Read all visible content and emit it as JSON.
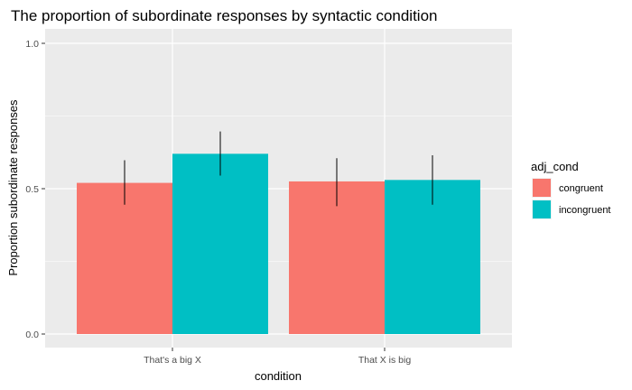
{
  "chart_data": {
    "type": "bar",
    "title": "The proportion of subordinate responses by syntactic condition",
    "xlabel": "condition",
    "ylabel": "Proportion subordinate responses",
    "categories": [
      "That's a big X",
      "That X is big"
    ],
    "series": [
      {
        "name": "congruent",
        "values": [
          0.52,
          0.525
        ],
        "err_low": [
          0.445,
          0.44
        ],
        "err_high": [
          0.598,
          0.605
        ]
      },
      {
        "name": "incongruent",
        "values": [
          0.62,
          0.53
        ],
        "err_low": [
          0.545,
          0.445
        ],
        "err_high": [
          0.697,
          0.615
        ]
      }
    ],
    "ylim": [
      0,
      1.0
    ],
    "yticks": [
      "0.0",
      "0.5",
      "1.0"
    ],
    "grid": true,
    "legend": {
      "title": "adj_cond",
      "position": "right"
    },
    "colors": {
      "congruent": "#F8766D",
      "incongruent": "#00BFC4",
      "panel": "#EBEBEB",
      "grid": "#FFFFFF"
    }
  }
}
